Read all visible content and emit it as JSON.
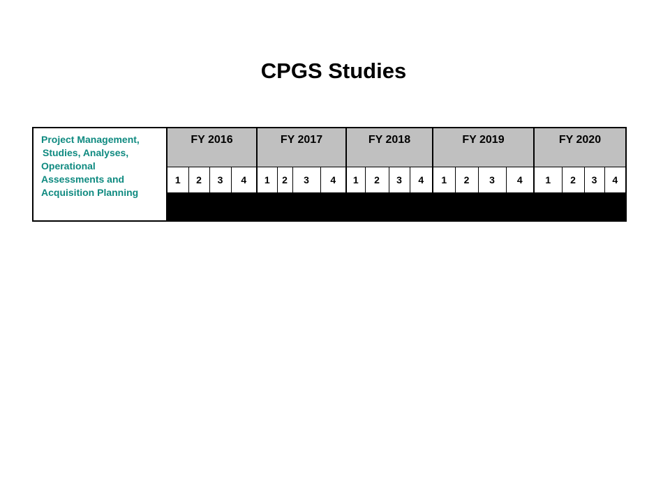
{
  "title": "CPGS Studies",
  "row_label_lines": [
    "Project Management,",
    "Studies, Analyses,",
    "Operational",
    "Assessments and",
    "Acquisition Planning"
  ],
  "fiscal_years": [
    {
      "label": "FY 2016",
      "quarters": [
        "1",
        "2",
        "3",
        "4"
      ]
    },
    {
      "label": "FY 2017",
      "quarters": [
        "1",
        "2",
        "3",
        "4"
      ]
    },
    {
      "label": "FY 2018",
      "quarters": [
        "1",
        "2",
        "3",
        "4"
      ]
    },
    {
      "label": "FY 2019",
      "quarters": [
        "1",
        "2",
        "3",
        "4"
      ]
    },
    {
      "label": "FY 2020",
      "quarters": [
        "1",
        "2",
        "3",
        "4"
      ]
    }
  ],
  "bar": {
    "start": "FY 2016 Q1",
    "end": "FY 2020 Q4",
    "color": "#000000"
  },
  "colors": {
    "label_text": "#0f8a80",
    "header_fill": "#c0c0c0",
    "bar_fill": "#000000"
  }
}
